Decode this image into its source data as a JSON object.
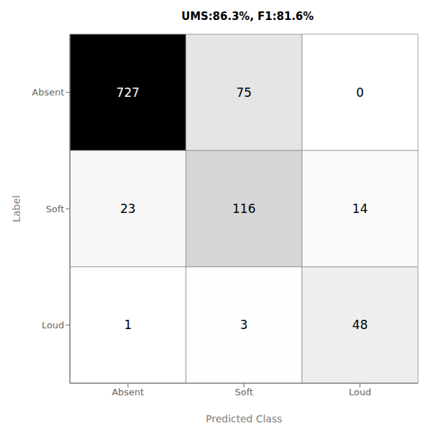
{
  "chart_data": {
    "type": "heatmap",
    "title": "UMS:86.3%, F1:81.6%",
    "categories": [
      "Absent",
      "Soft",
      "Loud"
    ],
    "matrix": [
      [
        727,
        75,
        0
      ],
      [
        23,
        116,
        14
      ],
      [
        1,
        3,
        48
      ]
    ],
    "xlabel": "Predicted Class",
    "ylabel": "Label",
    "data_labels": true
  }
}
